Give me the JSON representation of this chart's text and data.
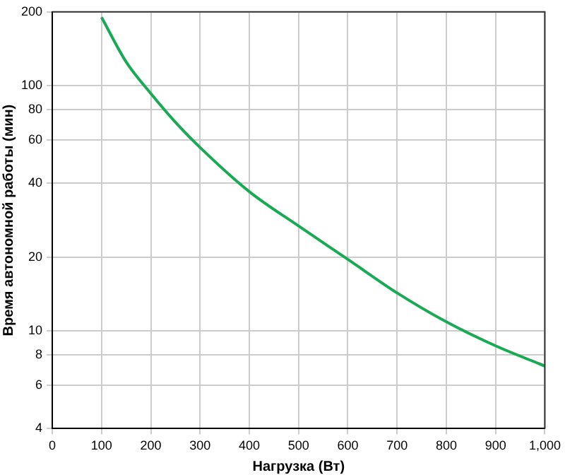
{
  "chart_data": {
    "type": "line",
    "xlabel": "Нагрузка (Вт)",
    "ylabel": "Время автономной работы (мин)",
    "log": "y",
    "grid": true,
    "legend": false,
    "marker": "none",
    "line_style": "solid",
    "x": [
      100,
      150,
      200,
      250,
      300,
      400,
      500,
      600,
      700,
      800,
      900,
      1000
    ],
    "series": [
      {
        "color": "#1aaa55",
        "values": [
          190,
          125,
          93,
          71,
          56,
          37,
          26.8,
          19.6,
          14.3,
          10.9,
          8.7,
          7.2
        ]
      }
    ],
    "xlim": [
      0,
      1000
    ],
    "xticks": [
      0,
      100,
      200,
      300,
      400,
      500,
      600,
      700,
      800,
      900,
      {
        "value": 1000,
        "label": "1,000"
      }
    ],
    "ylim": [
      4,
      200
    ],
    "yticks": [
      4,
      6,
      8,
      10,
      20,
      40,
      60,
      80,
      100,
      200
    ]
  }
}
